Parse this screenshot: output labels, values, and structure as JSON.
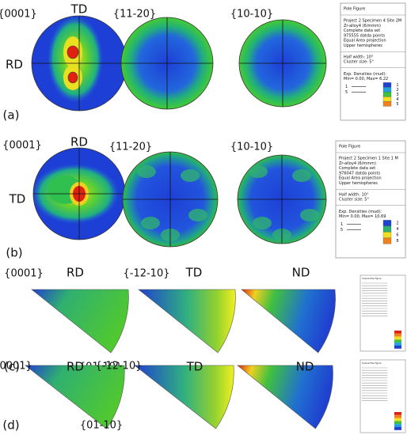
{
  "panels": [
    {
      "label": "(a)",
      "poles": [
        "{0001}",
        "{11-20}",
        "{10-10}"
      ],
      "top_axis": "TD",
      "left_axis": "RD",
      "box": {
        "title": "Pole Figure",
        "info": [
          "Project 2 Specimen 4 Site 2M",
          "Zr-alloy4 (6/mmm)",
          "Complete data set",
          "975555 datda points",
          "Equal Area projection",
          "Upper hemispheres"
        ],
        "settings": [
          "Half width: 10°",
          "Cluster size: 5°"
        ],
        "densities": [
          "Exp. Densities (mud):",
          "Min= 0.00, Max= 6.22"
        ],
        "line_keys": [
          "1",
          "5"
        ],
        "scale": [
          "1",
          "2",
          "3",
          "4",
          "5"
        ]
      }
    },
    {
      "label": "(b)",
      "poles": [
        "{0001}",
        "{11-20}",
        "{10-10}"
      ],
      "top_axis": "RD",
      "left_axis": "TD",
      "box": {
        "title": "Pole Figure",
        "info": [
          "Project 2 Specimen 1 Site 1 M",
          "Zr-alloy4 (6/mmm)",
          "Complete data set",
          "976047 datda points",
          "Equal Area projection",
          "Upper hemispheres"
        ],
        "settings": [
          "Half width: 10°",
          "Cluster size: 5°"
        ],
        "densities": [
          "Exp. Densities (mud):",
          "Min= 0.00, Max= 10.69"
        ],
        "line_keys": [
          "1",
          "5"
        ],
        "scale": [
          "2",
          "4",
          "6",
          "8"
        ]
      }
    },
    {
      "label": "(c)",
      "corners": [
        "{0001}",
        "{-12-10}",
        "{01-10}"
      ],
      "directions": [
        "RD",
        "TD",
        "ND"
      ],
      "box_title": "Inverse Pole Figure"
    },
    {
      "label": "(d)",
      "corners": [
        "{0001}",
        "{-12-10}",
        "{01-10}"
      ],
      "directions": [
        "RD",
        "TD",
        "ND"
      ],
      "box_title": "Inverse Pole Figure"
    }
  ]
}
